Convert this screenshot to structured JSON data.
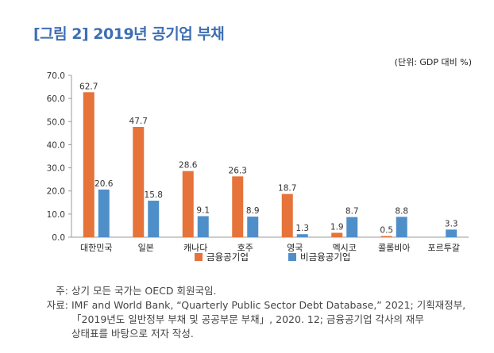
{
  "title": "[그림 2] 2019년 공기업 부채",
  "unit_label": "(단위: GDP 대비 %)",
  "chart_data": {
    "type": "bar",
    "categories": [
      "대한민국",
      "일본",
      "캐나다",
      "호주",
      "영국",
      "멕시코",
      "콜롬비아",
      "포르투갈"
    ],
    "series": [
      {
        "name": "금융공기업",
        "color": "#e5733a",
        "values": [
          62.7,
          47.7,
          28.6,
          26.3,
          18.7,
          1.9,
          0.5,
          null
        ],
        "labels": [
          "62.7",
          "47.7",
          "28.6",
          "26.3",
          "18.7",
          "1.9",
          "0.5",
          ""
        ]
      },
      {
        "name": "비금융공기업",
        "color": "#4f8fc9",
        "values": [
          20.6,
          15.8,
          9.1,
          8.9,
          1.3,
          8.7,
          8.8,
          3.3
        ],
        "labels": [
          "20.6",
          "15.8",
          "9.1",
          "8.9",
          "1.3",
          "8.7",
          "8.8",
          "3.3"
        ]
      }
    ],
    "ylim": [
      0,
      70
    ],
    "yticks": [
      "0.0",
      "10.0",
      "20.0",
      "30.0",
      "40.0",
      "50.0",
      "60.0",
      "70.0"
    ],
    "legend": "bottom-center"
  },
  "notes": {
    "note_label": "주:",
    "note_text": "상기 모든 국가는 OECD 회원국임.",
    "source_label": "자료:",
    "source_line1": "IMF and World Bank, “Quarterly Public Sector Debt Database,” 2021; 기획재정부,",
    "source_line2": "「2019년도 일반정부 부채 및 공공부문 부채」, 2020. 12; 금융공기업 각사의 재무",
    "source_line3": "상태표를 바탕으로 저자 작성."
  }
}
